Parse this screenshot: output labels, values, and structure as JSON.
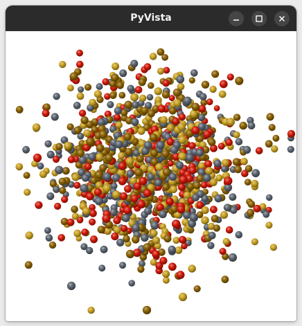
{
  "window": {
    "title": "PyVista"
  },
  "title_controls": [
    "minimize-icon",
    "maximize-icon",
    "close-icon"
  ],
  "scene": {
    "background": "#ffffff",
    "sphere_colors": [
      "#5b6470",
      "#c8a020",
      "#d01808",
      "#8a6000"
    ]
  }
}
